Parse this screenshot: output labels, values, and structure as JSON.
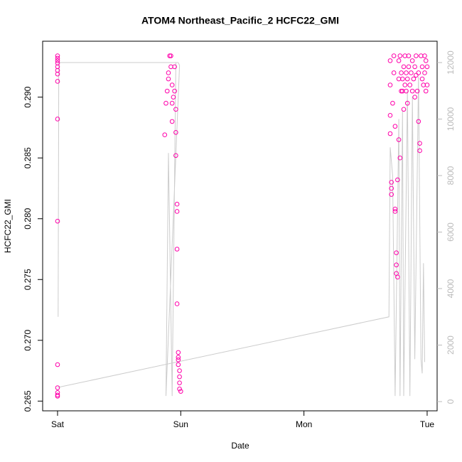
{
  "chart_data": {
    "type": "scatter",
    "title": "ATOM4 Northeast_Pacific_2 HCFC22_GMI",
    "x_label": "Date",
    "y_label": "HCFC22_GMI",
    "xlim": [
      -0.121,
      3.081
    ],
    "xticks": [
      {
        "value": 0,
        "label": "Sat"
      },
      {
        "value": 1,
        "label": "Sun"
      },
      {
        "value": 2,
        "label": "Mon"
      },
      {
        "value": 3,
        "label": "Tue"
      }
    ],
    "ylim": [
      0.2642,
      0.2946
    ],
    "yticks": [
      0.265,
      {
        "value": 0.27,
        "label": "0.270"
      },
      0.275,
      {
        "value": 0.28,
        "label": "0.280"
      },
      0.285,
      {
        "value": 0.29,
        "label": "0.290"
      }
    ],
    "y2lim": [
      -327,
      12755
    ],
    "y2ticks": [
      0,
      2000,
      4000,
      6000,
      8000,
      10000,
      12000
    ],
    "series": [
      {
        "type": "scatter",
        "color": "#ff00aa",
        "x": [
          0,
          0,
          0,
          0,
          0,
          0,
          0,
          0,
          0,
          0,
          0,
          0,
          0,
          0,
          0,
          0.87,
          0.88,
          0.89,
          0.9,
          0.9,
          0.91,
          0.92,
          0.92,
          0.93,
          0.93,
          0.93,
          0.94,
          0.95,
          0.95,
          0.96,
          0.96,
          0.96,
          0.97,
          0.97,
          0.97,
          0.97,
          0.98,
          0.98,
          0.98,
          0.98,
          0.99,
          0.99,
          0.99,
          0.99,
          1.0,
          2.7,
          2.7,
          2.7,
          2.7,
          2.71,
          2.71,
          2.71,
          2.72,
          2.73,
          2.73,
          2.74,
          2.74,
          2.74,
          2.75,
          2.75,
          2.75,
          2.76,
          2.76,
          2.77,
          2.77,
          2.77,
          2.78,
          2.78,
          2.79,
          2.79,
          2.8,
          2.8,
          2.81,
          2.81,
          2.82,
          2.82,
          2.83,
          2.83,
          2.84,
          2.84,
          2.85,
          2.85,
          2.86,
          2.87,
          2.88,
          2.88,
          2.89,
          2.9,
          2.9,
          2.91,
          2.91,
          2.92,
          2.93,
          2.93,
          2.94,
          2.94,
          2.95,
          2.96,
          2.96,
          2.97,
          2.98,
          2.98,
          2.99,
          2.99,
          3.0,
          3.0
        ],
        "values": [
          0.2934,
          0.2932,
          0.293,
          0.2928,
          0.2925,
          0.2922,
          0.2919,
          0.2913,
          0.2882,
          0.2798,
          0.268,
          0.2661,
          0.2657,
          0.2655,
          0.2654,
          0.2869,
          0.2895,
          0.2905,
          0.2915,
          0.292,
          0.2934,
          0.2934,
          0.2925,
          0.291,
          0.2895,
          0.288,
          0.29,
          0.2925,
          0.2905,
          0.2871,
          0.289,
          0.2852,
          0.2812,
          0.2806,
          0.2775,
          0.273,
          0.269,
          0.2686,
          0.2684,
          0.268,
          0.2675,
          0.267,
          0.2665,
          0.266,
          0.2658,
          0.293,
          0.291,
          0.2885,
          0.287,
          0.283,
          0.2825,
          0.282,
          0.2895,
          0.292,
          0.2934,
          0.2876,
          0.2808,
          0.2806,
          0.2772,
          0.2762,
          0.2755,
          0.2752,
          0.2832,
          0.293,
          0.2915,
          0.2865,
          0.285,
          0.2934,
          0.292,
          0.2905,
          0.2915,
          0.2905,
          0.2925,
          0.289,
          0.2934,
          0.291,
          0.292,
          0.2905,
          0.2895,
          0.2915,
          0.2934,
          0.2925,
          0.291,
          0.292,
          0.2905,
          0.293,
          0.2915,
          0.29,
          0.2925,
          0.2934,
          0.2918,
          0.2905,
          0.292,
          0.288,
          0.2862,
          0.2856,
          0.2934,
          0.2925,
          0.2915,
          0.291,
          0.2934,
          0.292,
          0.2905,
          0.293,
          0.2925,
          0.291
        ]
      },
      {
        "type": "line",
        "axis": "y2",
        "color": "#cccccc",
        "x": [
          0,
          2.69,
          2.7,
          2.72,
          2.74,
          2.77,
          2.78,
          2.8,
          2.81,
          2.84,
          2.86,
          2.88,
          2.9,
          2.93,
          2.95,
          2.96,
          2.97,
          2.98,
          null,
          0.005,
          0.01,
          0.98,
          0.99,
          0.88,
          0.9,
          0.93,
          0.96
        ],
        "values": [
          500,
          3000,
          9000,
          8000,
          200,
          10000,
          200,
          10300,
          200,
          11000,
          200,
          10800,
          1500,
          11500,
          1500,
          1000,
          4900,
          1400,
          null,
          3000,
          12000,
          12000,
          11900,
          200,
          8800,
          200,
          12000
        ]
      }
    ]
  }
}
